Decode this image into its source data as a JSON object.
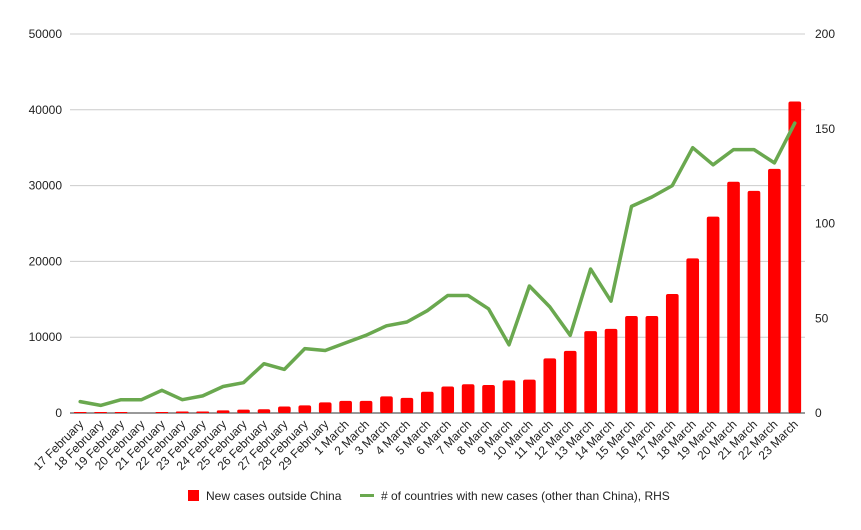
{
  "chart_data": {
    "type": "bar",
    "categories": [
      "17 February",
      "18 February",
      "19 February",
      "20 February",
      "21 February",
      "22 February",
      "23 February",
      "24 February",
      "25 February",
      "26 February",
      "27 February",
      "28 February",
      "29 February",
      "1 March",
      "2 March",
      "3 March",
      "4 March",
      "5 March",
      "6 March",
      "7 March",
      "8 March",
      "9 March",
      "10 March",
      "11 March",
      "12 March",
      "13 March",
      "14 March",
      "15 March",
      "16 March",
      "17 March",
      "18 March",
      "19 March",
      "20 March",
      "21 March",
      "22 March",
      "23 March"
    ],
    "series": [
      {
        "name": "New cases outside China",
        "type": "bar",
        "axis": "left",
        "color": "#ff0000",
        "values": [
          80,
          100,
          50,
          0,
          80,
          200,
          200,
          350,
          450,
          500,
          850,
          1000,
          1400,
          1600,
          1600,
          2200,
          2000,
          2800,
          3500,
          3800,
          3700,
          4300,
          4400,
          7200,
          8200,
          10800,
          11100,
          12800,
          12800,
          15700,
          20400,
          25900,
          30500,
          29300,
          32200,
          41100
        ]
      },
      {
        "name": "# of countries with new cases (other than China), RHS",
        "type": "line",
        "axis": "right",
        "color": "#6aa84f",
        "values": [
          6,
          4,
          7,
          7,
          12,
          7,
          9,
          14,
          16,
          26,
          23,
          34,
          33,
          37,
          41,
          46,
          48,
          54,
          62,
          62,
          55,
          36,
          67,
          56,
          41,
          76,
          59,
          109,
          114,
          120,
          140,
          131,
          139,
          139,
          132,
          153
        ]
      }
    ],
    "ylim": [
      0,
      50000
    ],
    "ytick_labels": [
      "0",
      "10000",
      "20000",
      "30000",
      "40000",
      "50000"
    ],
    "y2lim": [
      0,
      200
    ],
    "y2tick_labels": [
      "0",
      "50",
      "100",
      "150",
      "200"
    ],
    "grid": true,
    "legend": "bottom"
  }
}
